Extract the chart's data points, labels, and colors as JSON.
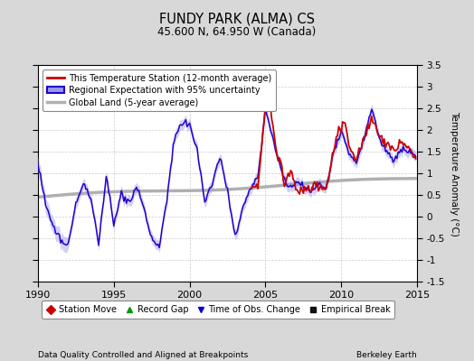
{
  "title": "FUNDY PARK (ALMA) CS",
  "subtitle": "45.600 N, 64.950 W (Canada)",
  "xlabel_bottom": "Data Quality Controlled and Aligned at Breakpoints",
  "xlabel_right": "Berkeley Earth",
  "ylabel": "Temperature Anomaly (°C)",
  "xlim": [
    1990,
    2015
  ],
  "ylim": [
    -1.5,
    3.5
  ],
  "yticks": [
    -1.5,
    -1.0,
    -0.5,
    0.0,
    0.5,
    1.0,
    1.5,
    2.0,
    2.5,
    3.0,
    3.5
  ],
  "xticks": [
    1990,
    1995,
    2000,
    2005,
    2010,
    2015
  ],
  "bg_color": "#d8d8d8",
  "plot_bg_color": "#ffffff",
  "legend_labels": [
    "This Temperature Station (12-month average)",
    "Regional Expectation with 95% uncertainty",
    "Global Land (5-year average)"
  ],
  "icon_labels": [
    "Station Move",
    "Record Gap",
    "Time of Obs. Change",
    "Empirical Break"
  ],
  "red_line_color": "#cc0000",
  "blue_line_color": "#2200cc",
  "blue_fill_color": "#9999ee",
  "gray_line_color": "#b0b0b0"
}
